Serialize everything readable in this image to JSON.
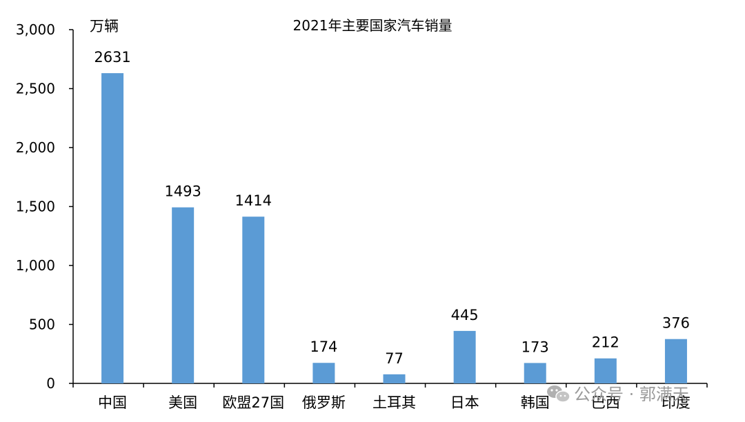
{
  "chart_data": {
    "type": "bar",
    "title": "2021年主要国家汽车销量",
    "unit_label": "万辆",
    "categories": [
      "中国",
      "美国",
      "欧盟27国",
      "俄罗斯",
      "土耳其",
      "日本",
      "韩国",
      "巴西",
      "印度"
    ],
    "values": [
      2631,
      1493,
      1414,
      174,
      77,
      445,
      173,
      212,
      376
    ],
    "ylim": [
      0,
      3000
    ],
    "yticks": [
      0,
      500,
      1000,
      1500,
      2000,
      2500,
      3000
    ],
    "ytick_labels": [
      "0",
      "500",
      "1,000",
      "1,500",
      "2,000",
      "2,500",
      "3,000"
    ],
    "grid": false,
    "bar_color": "#5b9bd5",
    "show_data_labels": true
  },
  "watermark": {
    "text": "公众号 · 郭满天",
    "icon": "wechat-icon",
    "color": "#9a9a9a"
  }
}
